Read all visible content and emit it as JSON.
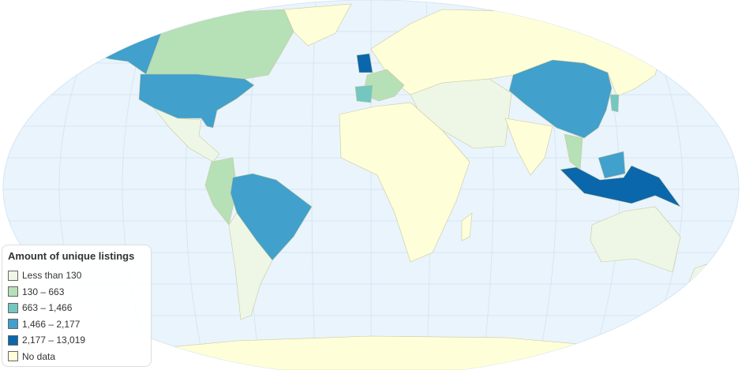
{
  "legend": {
    "title": "Amount of unique listings",
    "items": [
      {
        "label": "Less than 130",
        "color": "#eef7e6"
      },
      {
        "label": "130 – 663",
        "color": "#b6e0b6"
      },
      {
        "label": "663 – 1,466",
        "color": "#73c7c0"
      },
      {
        "label": "1,466 – 2,177",
        "color": "#41a0cc"
      },
      {
        "label": "2,177 – 13,019",
        "color": "#0a67ab"
      },
      {
        "label": "No data",
        "color": "#fefed9"
      }
    ]
  },
  "colors": {
    "ocean": "#eaf4fc",
    "graticule": "#d6e6f3",
    "border": "#c9c9a0"
  }
}
